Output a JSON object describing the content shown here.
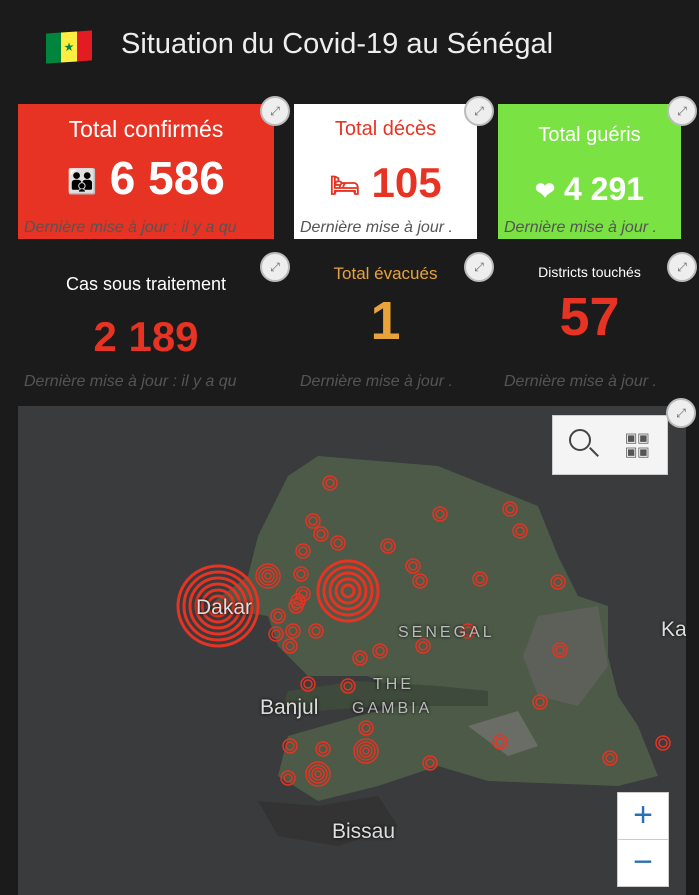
{
  "header": {
    "title": "Situation du Covid-19 au Sénégal",
    "flag_colors": [
      "#00853f",
      "#fdef42",
      "#e31b23"
    ]
  },
  "cards": [
    {
      "label": "Total confirmés",
      "value": "6 586",
      "icon": "family-icon",
      "update": "Dernière mise à jour : il y a qu",
      "bg": "#e63323",
      "color": "#ffffff"
    },
    {
      "label": "Total décès",
      "value": "105",
      "icon": "hospital-bed-icon",
      "update": "Dernière mise à jour .",
      "bg": "#ffffff",
      "color": "#e63323"
    },
    {
      "label": "Total guéris",
      "value": "4 291",
      "icon": "heart-leaf-icon",
      "update": "Dernière mise à jour .",
      "bg": "#7ae343",
      "color": "#ffffff"
    },
    {
      "label": "Cas sous traitement",
      "value": "2 189",
      "update": "Dernière mise à jour : il y a qu",
      "bg": "#1b1b1b",
      "color": "#e63323",
      "label_color": "#ffffff"
    },
    {
      "label": "Total évacués",
      "value": "1",
      "update": "Dernière mise à jour .",
      "bg": "#1b1b1b",
      "color": "#e8a33a",
      "label_color": "#e8a33a"
    },
    {
      "label": "Districts touchés",
      "value": "57",
      "update": "Dernière mise à jour .",
      "bg": "#1b1b1b",
      "color": "#e63323",
      "label_color": "#ffffff"
    }
  ],
  "map": {
    "places": [
      "Dakar",
      "SENEGAL",
      "THE",
      "GAMBIA",
      "Banjul",
      "Bissau",
      "Ka"
    ],
    "zoom_in": "+",
    "zoom_out": "−",
    "marker_color": "#e63323"
  }
}
